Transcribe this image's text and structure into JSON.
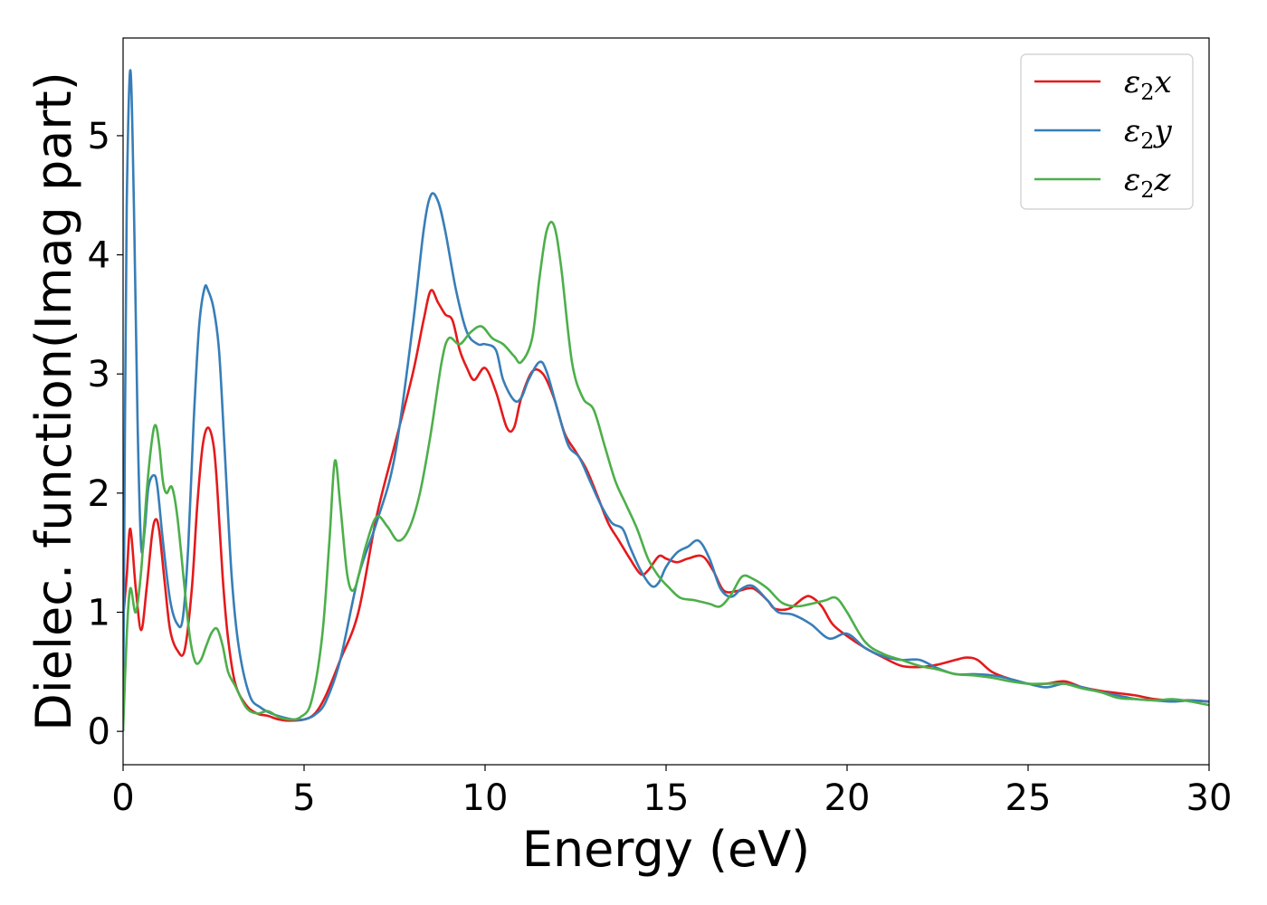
{
  "chart_data": {
    "type": "line",
    "title": "",
    "xlabel": "Energy (eV)",
    "ylabel": "Dielec. function(Imag part)",
    "xlim": [
      0,
      30
    ],
    "ylim": [
      -0.28,
      5.82
    ],
    "xticks": [
      "0",
      "5",
      "10",
      "15",
      "20",
      "25",
      "30"
    ],
    "yticks": [
      "0",
      "1",
      "2",
      "3",
      "4",
      "5"
    ],
    "grid": false,
    "legend_position": "top-right",
    "series": [
      {
        "name": "ε₂x",
        "legend": {
          "base": "ε",
          "sub": "2",
          "suffix": "x"
        },
        "color": "#e41a1c",
        "x": [
          0,
          0.1,
          0.2,
          0.35,
          0.5,
          0.65,
          0.8,
          0.9,
          1.0,
          1.15,
          1.3,
          1.5,
          1.7,
          1.9,
          2.05,
          2.2,
          2.35,
          2.5,
          2.6,
          2.75,
          2.9,
          3.1,
          3.4,
          3.7,
          4.0,
          4.3,
          4.6,
          5.0,
          5.3,
          5.6,
          6.0,
          6.5,
          7.0,
          7.5,
          8.0,
          8.3,
          8.5,
          8.7,
          8.9,
          9.1,
          9.3,
          9.5,
          9.7,
          10.0,
          10.3,
          10.6,
          10.8,
          11.0,
          11.3,
          11.6,
          11.9,
          12.2,
          12.5,
          12.8,
          13.1,
          13.4,
          13.7,
          14.0,
          14.3,
          14.5,
          14.8,
          15.0,
          15.3,
          15.6,
          16.0,
          16.3,
          16.6,
          17.0,
          17.4,
          17.8,
          18.0,
          18.4,
          18.8,
          19.0,
          19.3,
          19.6,
          20.0,
          20.5,
          21.0,
          21.5,
          22.0,
          22.5,
          23.0,
          23.3,
          23.6,
          24.0,
          24.5,
          25.0,
          25.5,
          26.0,
          26.5,
          27.0,
          27.5,
          28.0,
          28.5,
          29.0,
          29.5,
          30.0
        ],
        "y": [
          0.95,
          1.3,
          1.7,
          1.2,
          0.85,
          1.2,
          1.65,
          1.78,
          1.68,
          1.25,
          0.85,
          0.68,
          0.68,
          1.2,
          1.9,
          2.4,
          2.55,
          2.4,
          2.05,
          1.3,
          0.78,
          0.4,
          0.22,
          0.15,
          0.13,
          0.1,
          0.09,
          0.1,
          0.15,
          0.3,
          0.6,
          1.0,
          1.8,
          2.4,
          3.0,
          3.45,
          3.7,
          3.6,
          3.5,
          3.45,
          3.2,
          3.05,
          2.95,
          3.05,
          2.85,
          2.55,
          2.55,
          2.8,
          3.02,
          3.0,
          2.8,
          2.5,
          2.35,
          2.2,
          1.98,
          1.75,
          1.6,
          1.45,
          1.32,
          1.35,
          1.47,
          1.45,
          1.42,
          1.45,
          1.47,
          1.35,
          1.18,
          1.18,
          1.2,
          1.1,
          1.03,
          1.03,
          1.12,
          1.13,
          1.05,
          0.9,
          0.8,
          0.7,
          0.62,
          0.55,
          0.54,
          0.56,
          0.6,
          0.62,
          0.6,
          0.5,
          0.44,
          0.4,
          0.4,
          0.42,
          0.37,
          0.34,
          0.32,
          0.3,
          0.27,
          0.26,
          0.26,
          0.25
        ]
      },
      {
        "name": "ε₂y",
        "legend": {
          "base": "ε",
          "sub": "2",
          "suffix": "y"
        },
        "color": "#377eb8",
        "x": [
          0,
          0.05,
          0.1,
          0.2,
          0.3,
          0.4,
          0.5,
          0.6,
          0.7,
          0.85,
          0.95,
          1.1,
          1.3,
          1.5,
          1.65,
          1.8,
          1.95,
          2.1,
          2.25,
          2.35,
          2.5,
          2.65,
          2.8,
          3.0,
          3.2,
          3.5,
          3.8,
          4.1,
          4.4,
          4.7,
          5.0,
          5.3,
          5.6,
          6.0,
          6.5,
          7.0,
          7.5,
          8.0,
          8.3,
          8.5,
          8.7,
          8.9,
          9.2,
          9.5,
          9.8,
          10.0,
          10.3,
          10.5,
          10.8,
          11.0,
          11.2,
          11.5,
          11.7,
          12.0,
          12.3,
          12.6,
          12.9,
          13.2,
          13.5,
          13.8,
          14.0,
          14.3,
          14.6,
          14.8,
          15.0,
          15.3,
          15.6,
          15.9,
          16.2,
          16.5,
          16.8,
          17.1,
          17.4,
          17.8,
          18.1,
          18.5,
          19.0,
          19.5,
          20.0,
          20.5,
          21.0,
          21.5,
          22.0,
          22.5,
          23.0,
          23.5,
          24.0,
          24.5,
          25.0,
          25.5,
          26.0,
          26.5,
          27.0,
          27.5,
          28.0,
          28.5,
          29.0,
          29.5,
          30.0
        ],
        "y": [
          0.0,
          2.5,
          4.4,
          5.55,
          4.4,
          2.6,
          1.55,
          1.7,
          2.05,
          2.15,
          2.05,
          1.6,
          1.1,
          0.9,
          0.95,
          1.55,
          2.6,
          3.4,
          3.72,
          3.7,
          3.55,
          3.2,
          2.4,
          1.3,
          0.7,
          0.3,
          0.2,
          0.15,
          0.12,
          0.1,
          0.1,
          0.14,
          0.25,
          0.6,
          1.3,
          1.75,
          2.3,
          3.4,
          4.2,
          4.5,
          4.45,
          4.2,
          3.7,
          3.35,
          3.25,
          3.25,
          3.2,
          2.95,
          2.78,
          2.8,
          2.95,
          3.1,
          3.02,
          2.7,
          2.4,
          2.3,
          2.1,
          1.9,
          1.75,
          1.7,
          1.55,
          1.35,
          1.22,
          1.25,
          1.38,
          1.5,
          1.55,
          1.6,
          1.45,
          1.2,
          1.13,
          1.2,
          1.22,
          1.1,
          1.0,
          0.98,
          0.9,
          0.78,
          0.82,
          0.7,
          0.63,
          0.6,
          0.6,
          0.53,
          0.48,
          0.48,
          0.47,
          0.44,
          0.4,
          0.37,
          0.4,
          0.37,
          0.33,
          0.3,
          0.27,
          0.26,
          0.25,
          0.26,
          0.25
        ]
      },
      {
        "name": "ε₂z",
        "legend": {
          "base": "ε",
          "sub": "2",
          "suffix": "z"
        },
        "color": "#4daf4a",
        "x": [
          0,
          0.1,
          0.2,
          0.35,
          0.5,
          0.65,
          0.8,
          0.9,
          1.0,
          1.1,
          1.2,
          1.35,
          1.5,
          1.7,
          1.85,
          2.0,
          2.15,
          2.3,
          2.45,
          2.6,
          2.75,
          2.9,
          3.1,
          3.4,
          3.7,
          4.0,
          4.3,
          4.6,
          4.9,
          5.2,
          5.5,
          5.7,
          5.85,
          6.0,
          6.2,
          6.4,
          6.7,
          7.0,
          7.3,
          7.6,
          7.9,
          8.2,
          8.5,
          8.8,
          9.0,
          9.3,
          9.6,
          9.9,
          10.2,
          10.5,
          10.8,
          11.0,
          11.3,
          11.5,
          11.7,
          11.9,
          12.1,
          12.4,
          12.7,
          13.0,
          13.3,
          13.6,
          13.9,
          14.2,
          14.5,
          14.8,
          15.1,
          15.4,
          15.8,
          16.2,
          16.5,
          16.8,
          17.1,
          17.4,
          17.8,
          18.2,
          18.6,
          19.0,
          19.4,
          19.7,
          20.0,
          20.5,
          21.0,
          21.5,
          22.0,
          22.5,
          23.0,
          23.5,
          24.0,
          24.5,
          25.0,
          25.5,
          26.0,
          26.5,
          27.0,
          27.5,
          28.0,
          28.5,
          29.0,
          29.5,
          30.0
        ],
        "y": [
          0.0,
          0.8,
          1.2,
          1.0,
          1.35,
          2.0,
          2.45,
          2.57,
          2.4,
          2.1,
          2.0,
          2.05,
          1.8,
          1.2,
          0.78,
          0.58,
          0.6,
          0.72,
          0.83,
          0.86,
          0.72,
          0.5,
          0.38,
          0.2,
          0.15,
          0.17,
          0.12,
          0.1,
          0.12,
          0.25,
          0.8,
          1.6,
          2.27,
          1.9,
          1.3,
          1.2,
          1.55,
          1.8,
          1.72,
          1.6,
          1.7,
          2.0,
          2.5,
          3.1,
          3.3,
          3.25,
          3.35,
          3.4,
          3.3,
          3.25,
          3.15,
          3.1,
          3.3,
          3.8,
          4.2,
          4.25,
          3.9,
          3.1,
          2.8,
          2.7,
          2.4,
          2.1,
          1.9,
          1.7,
          1.45,
          1.3,
          1.2,
          1.12,
          1.1,
          1.07,
          1.05,
          1.15,
          1.3,
          1.28,
          1.2,
          1.08,
          1.05,
          1.07,
          1.1,
          1.12,
          1.0,
          0.75,
          0.65,
          0.6,
          0.55,
          0.52,
          0.48,
          0.47,
          0.45,
          0.42,
          0.4,
          0.4,
          0.4,
          0.36,
          0.33,
          0.28,
          0.27,
          0.26,
          0.27,
          0.25,
          0.22
        ]
      }
    ]
  }
}
